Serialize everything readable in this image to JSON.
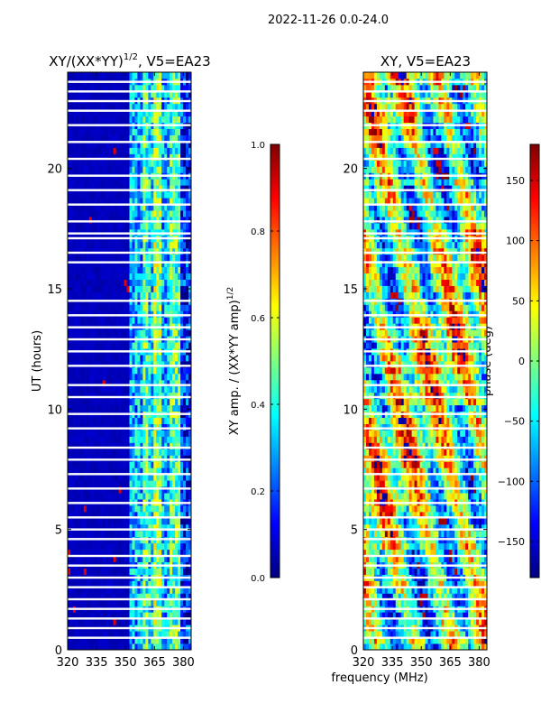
{
  "chart_data": {
    "type": "heatmap",
    "suptitle": "2022-11-26 0.0-24.0",
    "shared_xlabel": "frequency (MHz)",
    "panels": [
      {
        "title": "XY/(XX*YY)",
        "title_superscript": "1/2",
        "title_suffix": ", V5=EA23",
        "ylabel": "UT (hours)",
        "xlim": [
          320,
          384
        ],
        "ylim": [
          0,
          24
        ],
        "xticks": [
          320,
          335,
          350,
          365,
          380
        ],
        "yticks": [
          0,
          5,
          10,
          15,
          20
        ],
        "quantity": "amplitude",
        "colorbar": {
          "label": "XY amp. / (XX*YY amp)",
          "label_superscript": "1/2",
          "min": 0.0,
          "max": 1.0,
          "ticks": [
            0.0,
            0.2,
            0.4,
            0.6,
            0.8,
            1.0
          ],
          "tick_labels": [
            "0.0",
            "0.2",
            "0.4",
            "0.6",
            "0.8",
            "1.0"
          ]
        }
      },
      {
        "title": "XY, V5=EA23",
        "ylabel": "",
        "xlim": [
          320,
          384
        ],
        "ylim": [
          0,
          24
        ],
        "xticks": [
          320,
          335,
          350,
          365,
          380
        ],
        "yticks": [
          0,
          5,
          10,
          15,
          20
        ],
        "quantity": "phase",
        "colorbar": {
          "label": "phase (deg)",
          "min": -180,
          "max": 180,
          "ticks": [
            -150,
            -100,
            -50,
            0,
            50,
            100,
            150
          ],
          "tick_labels": [
            "−150",
            "−100",
            "−50",
            "0",
            "50",
            "100",
            "150"
          ]
        }
      }
    ],
    "colormap": "jet",
    "colormap_stops": [
      "#00007f",
      "#0000ff",
      "#007fff",
      "#00ffff",
      "#7fff7f",
      "#ffff00",
      "#ff7f00",
      "#ff0000",
      "#7f0000"
    ],
    "amplitude_bands": [
      {
        "x_start": 320,
        "x_end": 352,
        "level": 0.06
      },
      {
        "x_start": 352,
        "x_end": 359,
        "level": 0.3
      },
      {
        "x_start": 359,
        "x_end": 362,
        "level": 0.45
      },
      {
        "x_start": 362,
        "x_end": 365,
        "level": 0.35
      },
      {
        "x_start": 365,
        "x_end": 369,
        "level": 0.5
      },
      {
        "x_start": 369,
        "x_end": 373,
        "level": 0.3
      },
      {
        "x_start": 373,
        "x_end": 378,
        "level": 0.45
      },
      {
        "x_start": 378,
        "x_end": 384,
        "level": 0.15
      }
    ],
    "flagged_hours": [
      0.5,
      0.9,
      1.3,
      1.7,
      2.1,
      2.6,
      3.0,
      3.5,
      3.9,
      4.6,
      5.0,
      5.5,
      6.1,
      6.7,
      7.3,
      7.9,
      8.4,
      9.2,
      9.8,
      10.5,
      11.0,
      11.8,
      12.4,
      12.9,
      13.4,
      13.9,
      14.5,
      16.1,
      16.5,
      17.1,
      17.3,
      17.8,
      18.5,
      19.1,
      19.7,
      20.4,
      21.1,
      21.8,
      22.4,
      22.8,
      23.2,
      23.6
    ]
  }
}
